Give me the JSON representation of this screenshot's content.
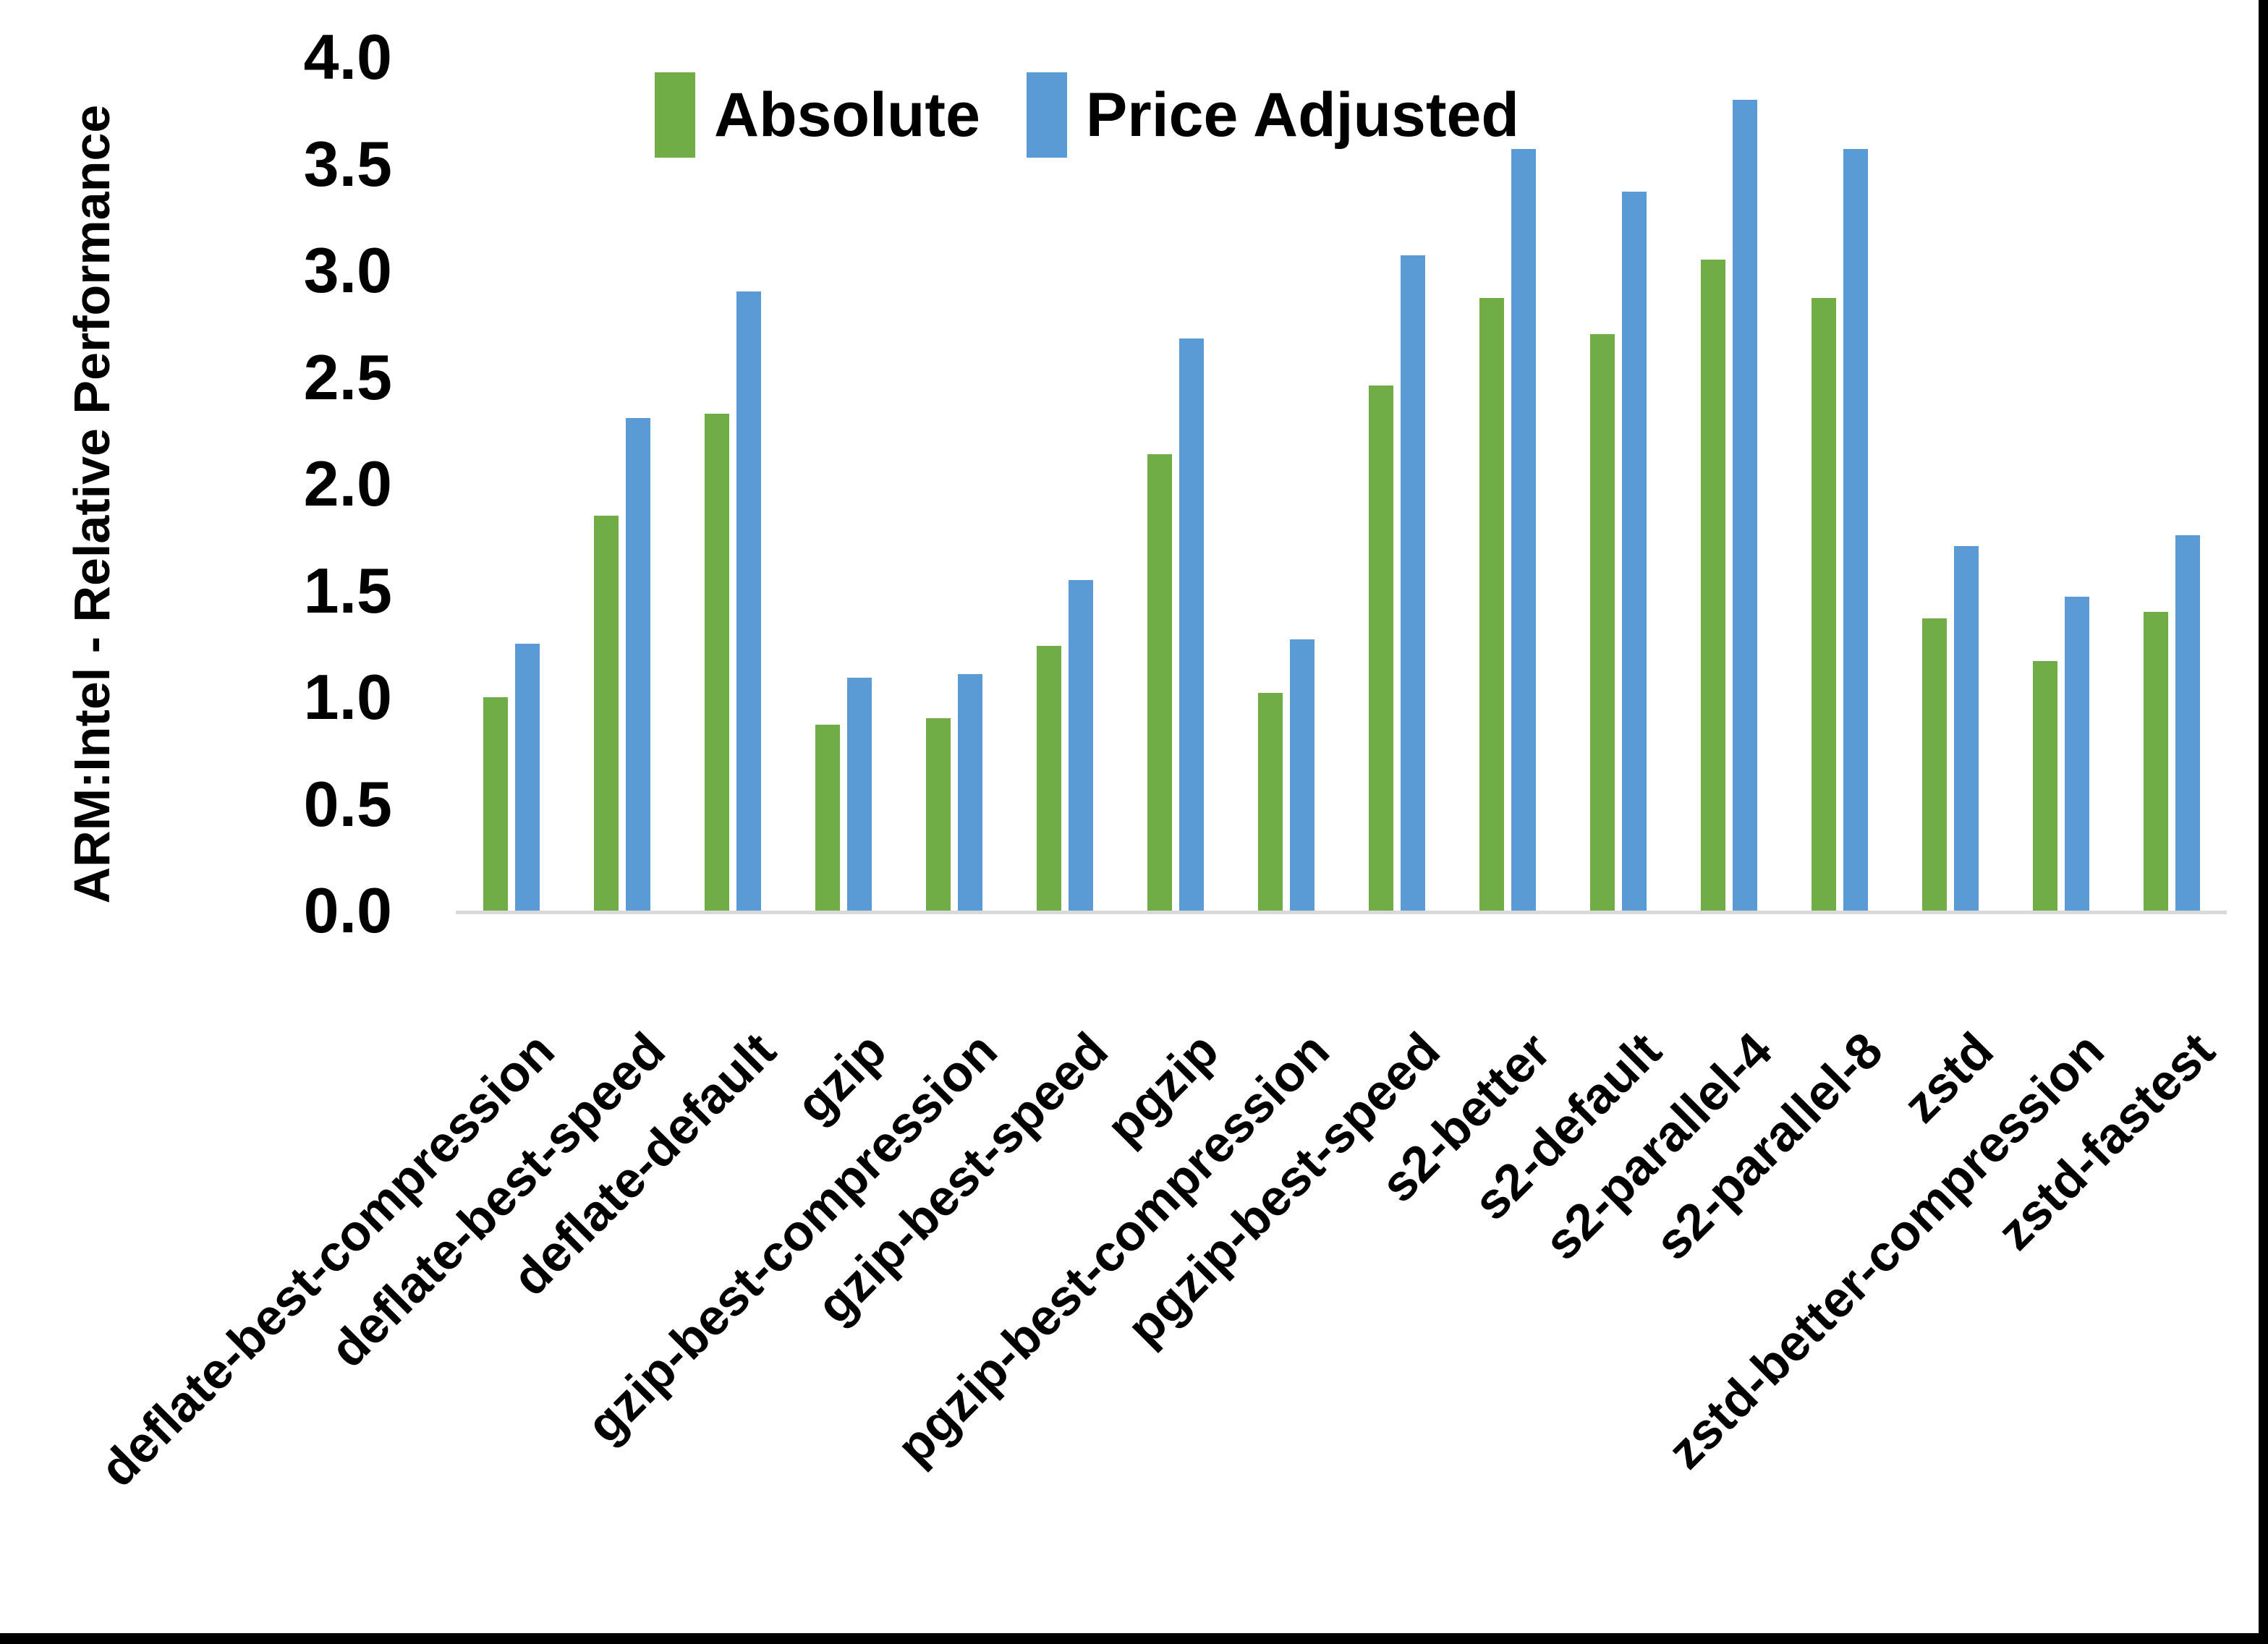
{
  "page": {
    "background_color": "#ffffff",
    "frame_color": "#000000"
  },
  "chart_data": {
    "type": "bar",
    "title": "",
    "xlabel": "",
    "ylabel": "ARM:Intel - Relative Performance",
    "ylim": [
      0.0,
      4.0
    ],
    "ytick_step": 0.5,
    "yticks": [
      "4.0",
      "3.5",
      "3.0",
      "2.5",
      "2.0",
      "1.5",
      "1.0",
      "0.5",
      "0.0"
    ],
    "grid": "off",
    "legend_position": "top-center",
    "axis_line_color": "#d9d9d9",
    "text_color": "#000000",
    "categories": [
      "deflate-best-compression",
      "deflate-best-speed",
      "deflate-default",
      "gzip",
      "gzip-best-compression",
      "gzip-best-speed",
      "pgzip",
      "pgzip-best-compression",
      "pgzip-best-speed",
      "s2-better",
      "s2-default",
      "s2-parallel-4",
      "s2-parallel-8",
      "zstd",
      "zstd-better-compression",
      "zstd-fastest"
    ],
    "series": [
      {
        "name": "Absolute",
        "color": "#70AD47",
        "values": [
          1.0,
          1.85,
          2.33,
          0.87,
          0.9,
          1.24,
          2.14,
          1.02,
          2.46,
          2.87,
          2.7,
          3.05,
          2.87,
          1.37,
          1.17,
          1.4
        ]
      },
      {
        "name": "Price Adjusted",
        "color": "#5B9BD5",
        "values": [
          1.25,
          2.31,
          2.9,
          1.09,
          1.11,
          1.55,
          2.68,
          1.27,
          3.07,
          3.57,
          3.37,
          3.8,
          3.57,
          1.71,
          1.47,
          1.76
        ]
      }
    ]
  }
}
